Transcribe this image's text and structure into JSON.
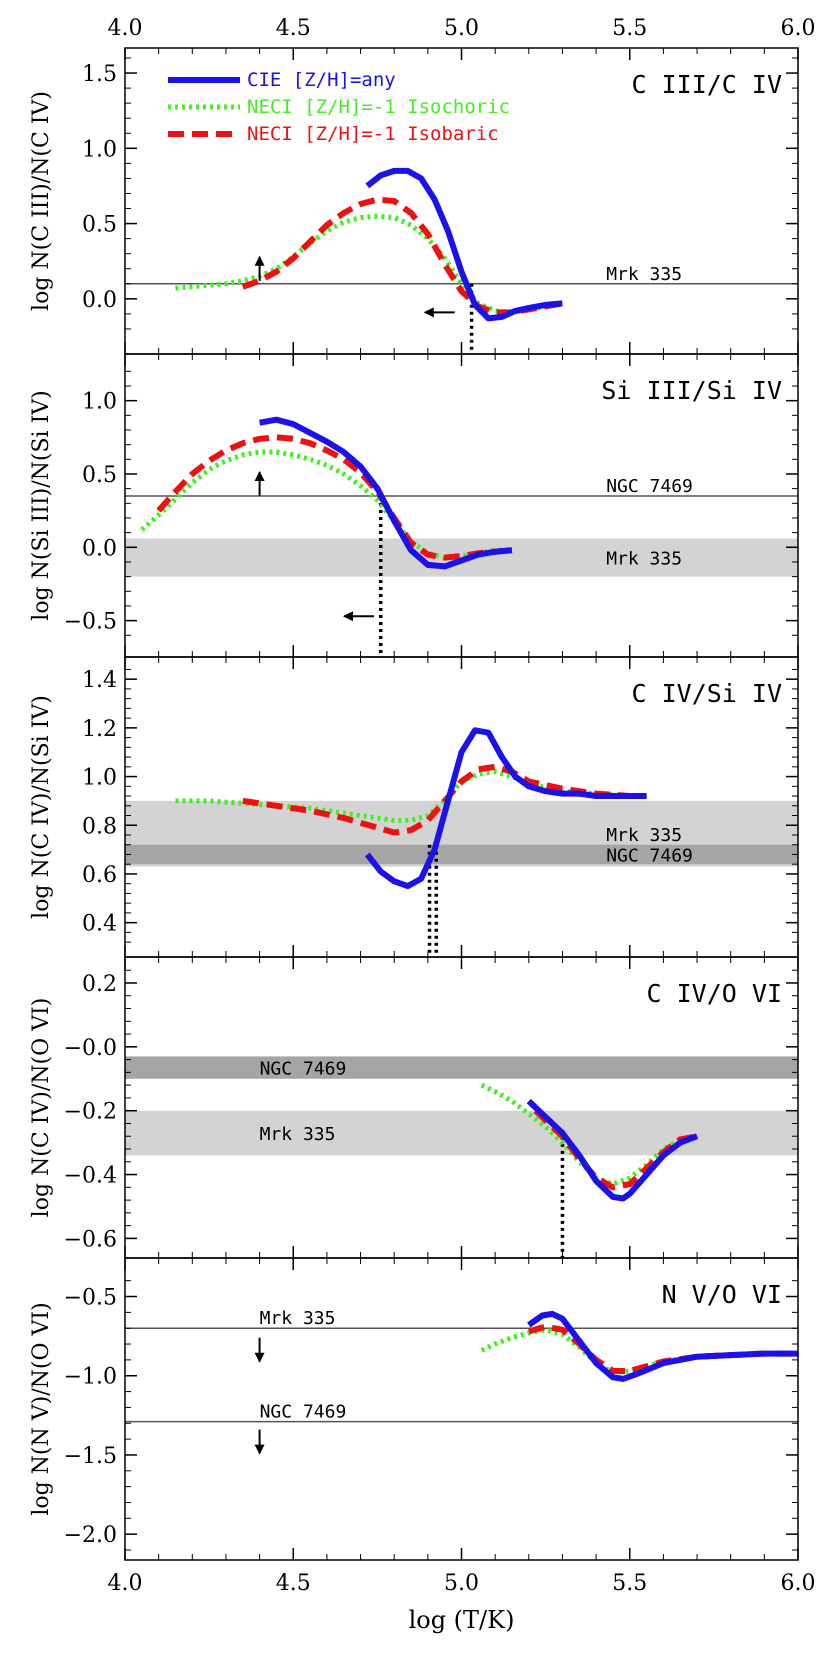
{
  "chart_data": {
    "type": "line",
    "xlabel": "log (T/K)",
    "xlim": [
      4.0,
      6.0
    ],
    "xticks": [
      "4.0",
      "4.5",
      "5.0",
      "5.5",
      "6.0"
    ],
    "legend": {
      "placement": "top-left",
      "entries": [
        {
          "label": "CIE [Z/H]=any",
          "color": "#1a12e8",
          "style": "solid"
        },
        {
          "label": "NECI [Z/H]=-1 Isochoric",
          "color": "#44ee22",
          "style": "dotted"
        },
        {
          "label": "NECI [Z/H]=-1 Isobaric",
          "color": "#ee1111",
          "style": "dashed"
        }
      ]
    },
    "colors": {
      "cie": "#1a12e8",
      "isochoric": "#44ee22",
      "isobaric": "#ee1111",
      "band_light": "#d3d3d3",
      "band_dark": "#a5a5a5"
    },
    "panels": [
      {
        "title": "C III/C IV",
        "ylabel": "log N(C III)/N(C IV)",
        "ylim": [
          -0.3,
          1.6
        ],
        "yticks": [
          "0.0",
          "0.5",
          "1.0",
          "1.5"
        ],
        "series": [
          {
            "key": "cie",
            "x": [
              4.72,
              4.76,
              4.8,
              4.84,
              4.88,
              4.92,
              4.96,
              5.0,
              5.04,
              5.08,
              5.12,
              5.16,
              5.2,
              5.25,
              5.3
            ],
            "y": [
              0.75,
              0.82,
              0.85,
              0.85,
              0.8,
              0.66,
              0.45,
              0.18,
              -0.04,
              -0.13,
              -0.12,
              -0.08,
              -0.06,
              -0.04,
              -0.03
            ]
          },
          {
            "key": "isochoric",
            "x": [
              4.15,
              4.2,
              4.25,
              4.3,
              4.35,
              4.4,
              4.45,
              4.5,
              4.55,
              4.6,
              4.65,
              4.7,
              4.75,
              4.8,
              4.85,
              4.9,
              4.95,
              5.0,
              5.05,
              5.1,
              5.15,
              5.2,
              5.25,
              5.3
            ],
            "y": [
              0.07,
              0.08,
              0.09,
              0.1,
              0.12,
              0.15,
              0.2,
              0.28,
              0.37,
              0.45,
              0.51,
              0.54,
              0.55,
              0.54,
              0.49,
              0.4,
              0.27,
              0.1,
              -0.03,
              -0.08,
              -0.09,
              -0.07,
              -0.05,
              -0.03
            ]
          },
          {
            "key": "isobaric",
            "x": [
              4.35,
              4.4,
              4.45,
              4.5,
              4.55,
              4.6,
              4.65,
              4.7,
              4.75,
              4.8,
              4.85,
              4.9,
              4.95,
              5.0,
              5.05,
              5.1,
              5.15,
              5.2,
              5.25,
              5.3
            ],
            "y": [
              0.08,
              0.12,
              0.18,
              0.27,
              0.38,
              0.49,
              0.57,
              0.63,
              0.66,
              0.65,
              0.57,
              0.43,
              0.23,
              0.05,
              -0.05,
              -0.09,
              -0.09,
              -0.07,
              -0.05,
              -0.03
            ]
          }
        ],
        "bands": [],
        "hlines": [
          {
            "y": 0.1,
            "label": "Mrk 335"
          }
        ],
        "vlines": [
          {
            "x": 5.03,
            "y_from": -0.3,
            "y_to": 0.1
          }
        ],
        "arrows": [
          {
            "x": 4.4,
            "y": 0.12,
            "dir": "up"
          },
          {
            "x": 4.98,
            "y": -0.09,
            "dir": "left"
          }
        ]
      },
      {
        "title": "Si III/Si IV",
        "ylabel": "log N(Si III)/N(Si IV)",
        "ylim": [
          -0.68,
          1.25
        ],
        "yticks": [
          "-0.5",
          "0.0",
          "0.5",
          "1.0"
        ],
        "series": [
          {
            "key": "cie",
            "x": [
              4.4,
              4.45,
              4.5,
              4.55,
              4.6,
              4.65,
              4.7,
              4.75,
              4.8,
              4.85,
              4.9,
              4.95,
              5.0,
              5.05,
              5.1,
              5.15
            ],
            "y": [
              0.85,
              0.87,
              0.84,
              0.78,
              0.72,
              0.65,
              0.55,
              0.4,
              0.18,
              -0.02,
              -0.12,
              -0.13,
              -0.09,
              -0.05,
              -0.03,
              -0.02
            ]
          },
          {
            "key": "isochoric",
            "x": [
              4.05,
              4.1,
              4.15,
              4.2,
              4.25,
              4.3,
              4.35,
              4.4,
              4.45,
              4.5,
              4.55,
              4.6,
              4.65,
              4.7,
              4.75,
              4.8,
              4.85,
              4.9,
              4.95,
              5.0,
              5.05,
              5.1,
              5.15
            ],
            "y": [
              0.12,
              0.22,
              0.33,
              0.44,
              0.53,
              0.59,
              0.63,
              0.65,
              0.65,
              0.63,
              0.6,
              0.56,
              0.5,
              0.42,
              0.32,
              0.18,
              0.04,
              -0.04,
              -0.07,
              -0.06,
              -0.04,
              -0.02,
              -0.02
            ]
          },
          {
            "key": "isobaric",
            "x": [
              4.1,
              4.15,
              4.2,
              4.25,
              4.3,
              4.35,
              4.4,
              4.45,
              4.5,
              4.55,
              4.6,
              4.65,
              4.7,
              4.75,
              4.8,
              4.85,
              4.9,
              4.95,
              5.0,
              5.05,
              5.1,
              5.15
            ],
            "y": [
              0.25,
              0.38,
              0.5,
              0.59,
              0.66,
              0.71,
              0.74,
              0.75,
              0.74,
              0.71,
              0.66,
              0.6,
              0.51,
              0.38,
              0.2,
              0.03,
              -0.05,
              -0.07,
              -0.06,
              -0.04,
              -0.03,
              -0.02
            ]
          }
        ],
        "bands": [
          {
            "y1": -0.2,
            "y2": 0.06,
            "shade": "light",
            "label": "Mrk 335"
          }
        ],
        "hlines": [
          {
            "y": 0.35,
            "label": "NGC 7469"
          }
        ],
        "vlines": [
          {
            "x": 4.76,
            "y_from": -0.68,
            "y_to": 0.35
          }
        ],
        "arrows": [
          {
            "x": 4.4,
            "y": 0.35,
            "dir": "up"
          },
          {
            "x": 4.74,
            "y": -0.47,
            "dir": "left"
          }
        ]
      },
      {
        "title": "C IV/Si IV",
        "ylabel": "log N(C IV)/N(Si IV)",
        "ylim": [
          0.3,
          1.45
        ],
        "yticks": [
          "0.4",
          "0.6",
          "0.8",
          "1.0",
          "1.2",
          "1.4"
        ],
        "series": [
          {
            "key": "cie",
            "x": [
              4.72,
              4.76,
              4.8,
              4.84,
              4.88,
              4.92,
              4.96,
              5.0,
              5.04,
              5.08,
              5.12,
              5.16,
              5.2,
              5.25,
              5.3,
              5.35,
              5.4,
              5.45,
              5.5,
              5.55
            ],
            "y": [
              0.68,
              0.61,
              0.57,
              0.55,
              0.58,
              0.7,
              0.9,
              1.1,
              1.19,
              1.18,
              1.08,
              1.0,
              0.96,
              0.94,
              0.93,
              0.93,
              0.92,
              0.92,
              0.92,
              0.92
            ]
          },
          {
            "key": "isochoric",
            "x": [
              4.15,
              4.25,
              4.35,
              4.45,
              4.55,
              4.65,
              4.75,
              4.8,
              4.85,
              4.9,
              4.95,
              5.0,
              5.05,
              5.1,
              5.15,
              5.2,
              5.3,
              5.4,
              5.5,
              5.55
            ],
            "y": [
              0.9,
              0.9,
              0.89,
              0.88,
              0.87,
              0.85,
              0.83,
              0.82,
              0.82,
              0.84,
              0.9,
              0.98,
              1.01,
              1.02,
              1.0,
              0.97,
              0.94,
              0.93,
              0.92,
              0.92
            ]
          },
          {
            "key": "isobaric",
            "x": [
              4.35,
              4.45,
              4.55,
              4.65,
              4.75,
              4.8,
              4.85,
              4.9,
              4.95,
              5.0,
              5.05,
              5.1,
              5.15,
              5.2,
              5.3,
              5.4,
              5.5,
              5.55
            ],
            "y": [
              0.9,
              0.88,
              0.86,
              0.83,
              0.79,
              0.77,
              0.78,
              0.82,
              0.9,
              0.98,
              1.03,
              1.04,
              1.02,
              0.98,
              0.95,
              0.93,
              0.92,
              0.92
            ]
          }
        ],
        "bands": [
          {
            "y1": 0.63,
            "y2": 0.9,
            "shade": "light",
            "label": "Mrk 335"
          },
          {
            "y1": 0.64,
            "y2": 0.72,
            "shade": "dark",
            "label": "NGC 7469"
          }
        ],
        "hlines": [],
        "vlines": [
          {
            "x": 4.905,
            "y_from": 0.3,
            "y_to": 0.72
          },
          {
            "x": 4.925,
            "y_from": 0.3,
            "y_to": 0.72
          }
        ],
        "arrows": []
      },
      {
        "title": "C IV/O VI",
        "ylabel": "log N(C IV)/N(O VI)",
        "ylim": [
          -0.63,
          0.25
        ],
        "yticks": [
          "-0.6",
          "-0.4",
          "-0.2",
          "-0.0",
          "0.2"
        ],
        "series": [
          {
            "key": "cie",
            "x": [
              5.2,
              5.25,
              5.3,
              5.35,
              5.4,
              5.45,
              5.48,
              5.5,
              5.55,
              5.6,
              5.65,
              5.7
            ],
            "y": [
              -0.17,
              -0.22,
              -0.27,
              -0.34,
              -0.42,
              -0.47,
              -0.475,
              -0.46,
              -0.4,
              -0.34,
              -0.3,
              -0.28
            ]
          },
          {
            "key": "isochoric",
            "x": [
              5.06,
              5.1,
              5.15,
              5.2,
              5.25,
              5.3,
              5.35,
              5.4,
              5.45,
              5.5,
              5.55,
              5.6,
              5.65,
              5.7
            ],
            "y": [
              -0.12,
              -0.14,
              -0.17,
              -0.21,
              -0.25,
              -0.3,
              -0.36,
              -0.41,
              -0.43,
              -0.41,
              -0.37,
              -0.32,
              -0.29,
              -0.28
            ]
          },
          {
            "key": "isobaric",
            "x": [
              5.22,
              5.25,
              5.3,
              5.35,
              5.4,
              5.45,
              5.5,
              5.55,
              5.6,
              5.65,
              5.7
            ],
            "y": [
              -0.2,
              -0.23,
              -0.28,
              -0.35,
              -0.41,
              -0.44,
              -0.43,
              -0.38,
              -0.33,
              -0.29,
              -0.28
            ]
          }
        ],
        "bands": [
          {
            "y1": -0.1,
            "y2": -0.03,
            "shade": "dark",
            "label": "NGC 7469"
          },
          {
            "y1": -0.34,
            "y2": -0.2,
            "shade": "light",
            "label": "Mrk 335"
          }
        ],
        "hlines": [],
        "vlines": [
          {
            "x": 5.3,
            "y_from": -0.63,
            "y_to": -0.26
          }
        ],
        "arrows": []
      },
      {
        "title": "N V/O VI",
        "ylabel": "log N(N V)/N(O VI)",
        "ylim": [
          -2.1,
          -0.32
        ],
        "yticks": [
          "-2.0",
          "-1.5",
          "-1.0",
          "-0.5"
        ],
        "series": [
          {
            "key": "cie",
            "x": [
              5.2,
              5.24,
              5.27,
              5.3,
              5.35,
              5.4,
              5.45,
              5.48,
              5.52,
              5.6,
              5.7,
              5.8,
              5.9,
              6.0
            ],
            "y": [
              -0.68,
              -0.62,
              -0.61,
              -0.64,
              -0.78,
              -0.92,
              -1.01,
              -1.02,
              -0.99,
              -0.92,
              -0.88,
              -0.87,
              -0.86,
              -0.86
            ]
          },
          {
            "key": "isochoric",
            "x": [
              5.06,
              5.1,
              5.15,
              5.2,
              5.25,
              5.3,
              5.35,
              5.4,
              5.45,
              5.5,
              5.6,
              5.7,
              5.8,
              5.9,
              6.0
            ],
            "y": [
              -0.84,
              -0.8,
              -0.76,
              -0.73,
              -0.71,
              -0.74,
              -0.82,
              -0.92,
              -0.98,
              -0.97,
              -0.91,
              -0.88,
              -0.87,
              -0.86,
              -0.86
            ]
          },
          {
            "key": "isobaric",
            "x": [
              5.2,
              5.25,
              5.3,
              5.35,
              5.4,
              5.45,
              5.5,
              5.6,
              5.7,
              5.8,
              5.9,
              6.0
            ],
            "y": [
              -0.72,
              -0.69,
              -0.71,
              -0.8,
              -0.9,
              -0.97,
              -0.97,
              -0.91,
              -0.88,
              -0.87,
              -0.86,
              -0.86
            ]
          }
        ],
        "bands": [],
        "hlines": [
          {
            "y": -0.7,
            "label": "Mrk 335"
          },
          {
            "y": -1.29,
            "label": "NGC 7469"
          }
        ],
        "vlines": [],
        "arrows": [
          {
            "x": 4.4,
            "y": -0.76,
            "dir": "down"
          },
          {
            "x": 4.4,
            "y": -1.34,
            "dir": "down"
          }
        ]
      }
    ]
  }
}
